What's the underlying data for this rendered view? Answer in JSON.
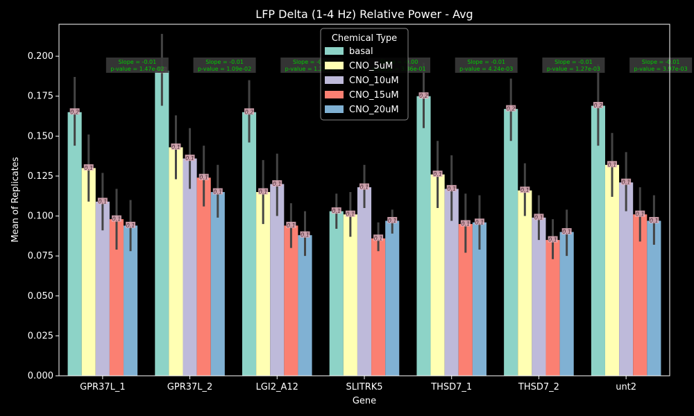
{
  "chart_data": {
    "type": "bar",
    "title": "LFP Delta (1-4 Hz) Relative Power - Avg",
    "xlabel": "Gene",
    "ylabel": "Mean of Replicates",
    "ylim": [
      0,
      0.22
    ],
    "yticks": [
      "0.000",
      "0.025",
      "0.050",
      "0.075",
      "0.100",
      "0.125",
      "0.150",
      "0.175",
      "0.200"
    ],
    "grid": false,
    "legend": {
      "title": "Chemical Type",
      "placement": "top-center"
    },
    "categories": [
      "GPR37L_1",
      "GPR37L_2",
      "LGI2_A12",
      "SLITRK5",
      "THSD7_1",
      "THSD7_2",
      "unt2"
    ],
    "series": [
      {
        "name": "basal",
        "color": "#8dd3c7",
        "values": [
          0.165,
          0.191,
          0.165,
          0.103,
          0.175,
          0.167,
          0.169
        ],
        "err": [
          [
            0.144,
            0.187
          ],
          [
            0.169,
            0.214
          ],
          [
            0.146,
            0.185
          ],
          [
            0.092,
            0.114
          ],
          [
            0.155,
            0.196
          ],
          [
            0.147,
            0.186
          ],
          [
            0.144,
            0.195
          ]
        ],
        "bar_labels": [
          "0.2",
          "0.2",
          "0.2",
          "0.1",
          "0.2",
          "0.2",
          "0.2"
        ]
      },
      {
        "name": "CNO_5uM",
        "color": "#ffffb3",
        "values": [
          0.13,
          0.143,
          0.115,
          0.101,
          0.126,
          0.116,
          0.132
        ],
        "err": [
          [
            0.109,
            0.151
          ],
          [
            0.123,
            0.163
          ],
          [
            0.095,
            0.135
          ],
          [
            0.087,
            0.115
          ],
          [
            0.105,
            0.147
          ],
          [
            0.1,
            0.133
          ],
          [
            0.112,
            0.152
          ]
        ],
        "bar_labels": [
          "0.1",
          "0.1",
          "0.1",
          "0.1",
          "0.1",
          "0.1",
          "0.1"
        ]
      },
      {
        "name": "CNO_10uM",
        "color": "#bebada",
        "values": [
          0.109,
          0.136,
          0.12,
          0.118,
          0.117,
          0.099,
          0.121
        ],
        "err": [
          [
            0.091,
            0.127
          ],
          [
            0.117,
            0.155
          ],
          [
            0.1,
            0.139
          ],
          [
            0.105,
            0.132
          ],
          [
            0.097,
            0.138
          ],
          [
            0.085,
            0.113
          ],
          [
            0.103,
            0.14
          ]
        ],
        "bar_labels": [
          "0.1",
          "0.1",
          "0.1",
          "0.1",
          "0.1",
          "0.1",
          "0.1"
        ]
      },
      {
        "name": "CNO_15uM",
        "color": "#fb8072",
        "values": [
          0.098,
          0.124,
          0.094,
          0.086,
          0.095,
          0.085,
          0.101
        ],
        "err": [
          [
            0.079,
            0.117
          ],
          [
            0.106,
            0.144
          ],
          [
            0.08,
            0.108
          ],
          [
            0.078,
            0.096
          ],
          [
            0.077,
            0.114
          ],
          [
            0.073,
            0.098
          ],
          [
            0.084,
            0.118
          ]
        ],
        "bar_labels": [
          "0.1",
          "0.1",
          "0.1",
          "0.1",
          "0.1",
          "0.1",
          "0.1"
        ]
      },
      {
        "name": "CNO_20uM",
        "color": "#80b1d3",
        "values": [
          0.094,
          0.115,
          0.088,
          0.097,
          0.096,
          0.09,
          0.097
        ],
        "err": [
          [
            0.078,
            0.11
          ],
          [
            0.099,
            0.132
          ],
          [
            0.075,
            0.103
          ],
          [
            0.089,
            0.104
          ],
          [
            0.079,
            0.113
          ],
          [
            0.075,
            0.104
          ],
          [
            0.082,
            0.113
          ]
        ],
        "bar_labels": [
          "0.1",
          "0.1",
          "0.1",
          "0.1",
          "0.1",
          "0.1",
          "0.1"
        ]
      }
    ],
    "annotations": [
      {
        "line1": "Slope = -0.01",
        "line2": "p-value = 1.47e-02"
      },
      {
        "line1": "Slope = -0.01",
        "line2": "p-value = 1.09e-02"
      },
      {
        "line1": "Slope = -0.01",
        "line2": "p-value = 1.25e-02"
      },
      {
        "line1": "Slope = -0.00",
        "line2": "p-value = 3.36e-01"
      },
      {
        "line1": "Slope = -0.01",
        "line2": "p-value = 4.24e-03"
      },
      {
        "line1": "Slope = -0.01",
        "line2": "p-value = 1.27e-03"
      },
      {
        "line1": "Slope = -0.01",
        "line2": "p-value = 3.97e-03"
      }
    ],
    "annotation_color": "#00cc00",
    "errorbar_color": "#444444",
    "bar_label_color": "#e6b3bf"
  }
}
